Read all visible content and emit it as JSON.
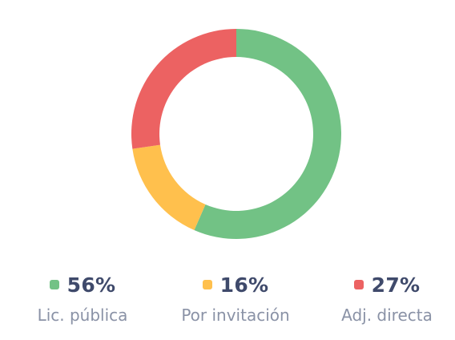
{
  "chart_data": {
    "type": "pie",
    "title": "",
    "legend_position": "bottom",
    "series": [
      {
        "name": "Lic. pública",
        "value": 56,
        "value_label": "56%",
        "color": "#72c285"
      },
      {
        "name": "Por invitación",
        "value": 16,
        "value_label": "16%",
        "color": "#ffc04d"
      },
      {
        "name": "Adj. directa",
        "value": 27,
        "value_label": "27%",
        "color": "#ec6262"
      }
    ]
  }
}
